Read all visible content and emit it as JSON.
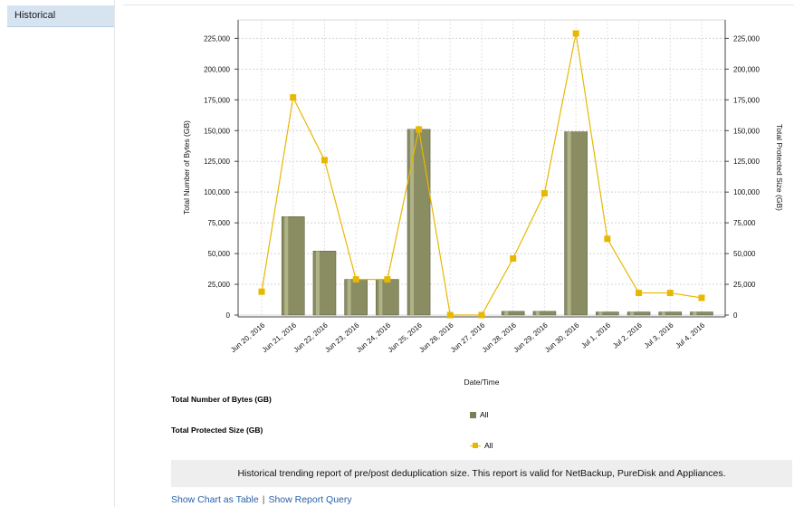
{
  "sidebar": {
    "tab_label": "Historical"
  },
  "chart_data": {
    "type": "bar+line",
    "categories": [
      "Jun 20, 2016",
      "Jun 21, 2016",
      "Jun 22, 2016",
      "Jun 23, 2016",
      "Jun 24, 2016",
      "Jun 25, 2016",
      "Jun 26, 2016",
      "Jun 27, 2016",
      "Jun 28, 2016",
      "Jun 29, 2016",
      "Jun 30, 2016",
      "Jul 1, 2016",
      "Jul 2, 2016",
      "Jul 3, 2016",
      "Jul 4, 2016"
    ],
    "series": [
      {
        "name": "All",
        "type": "bar",
        "axis": "left",
        "color": "#8a8c62",
        "values": [
          0,
          80000,
          52000,
          29000,
          29000,
          151000,
          0,
          0,
          3000,
          3000,
          149000,
          2500,
          2500,
          2500,
          2500
        ]
      },
      {
        "name": "All",
        "type": "line",
        "axis": "right",
        "color": "#e8b800",
        "values": [
          19000,
          177000,
          126000,
          29000,
          29000,
          151000,
          0,
          0,
          46000,
          99000,
          229000,
          62000,
          18000,
          18000,
          14000
        ]
      }
    ],
    "xlabel": "Date/Time",
    "ylabel": "Total Number of Bytes (GB)",
    "y2label": "Total Protected Size (GB)",
    "ylim": [
      0,
      240000
    ],
    "yticks": [
      0,
      25000,
      50000,
      75000,
      100000,
      125000,
      150000,
      175000,
      200000,
      225000
    ],
    "ytick_labels": [
      "0",
      "25,000",
      "50,000",
      "75,000",
      "100,000",
      "125,000",
      "150,000",
      "175,000",
      "200,000",
      "225,000"
    ],
    "grid": true,
    "legend": {
      "groups": [
        {
          "heading": "Total Number of Bytes (GB)",
          "item": "All"
        },
        {
          "heading": "Total Protected Size (GB)",
          "item": "All"
        }
      ],
      "placement": "bottom"
    }
  },
  "description": "Historical trending report of pre/post deduplication size. This report is valid for NetBackup, PureDisk and Appliances.",
  "links": {
    "show_table": "Show Chart as Table",
    "separator": "|",
    "show_query": "Show Report Query"
  }
}
